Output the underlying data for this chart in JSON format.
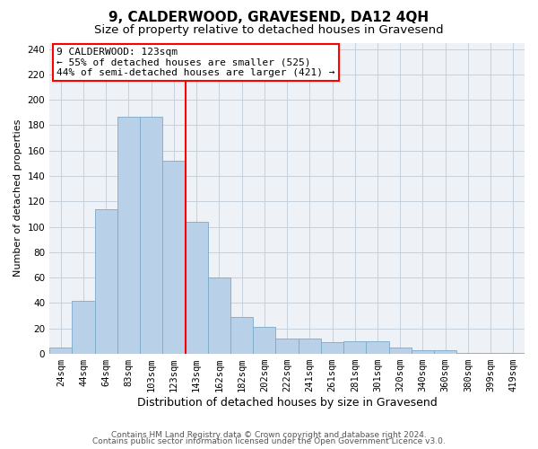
{
  "title": "9, CALDERWOOD, GRAVESEND, DA12 4QH",
  "subtitle": "Size of property relative to detached houses in Gravesend",
  "xlabel": "Distribution of detached houses by size in Gravesend",
  "ylabel": "Number of detached properties",
  "categories": [
    "24sqm",
    "44sqm",
    "64sqm",
    "83sqm",
    "103sqm",
    "123sqm",
    "143sqm",
    "162sqm",
    "182sqm",
    "202sqm",
    "222sqm",
    "241sqm",
    "261sqm",
    "281sqm",
    "301sqm",
    "320sqm",
    "340sqm",
    "360sqm",
    "380sqm",
    "399sqm",
    "419sqm"
  ],
  "values": [
    5,
    42,
    114,
    187,
    187,
    152,
    104,
    60,
    29,
    21,
    12,
    12,
    9,
    10,
    10,
    5,
    3,
    3,
    1,
    1,
    1
  ],
  "bar_color": "#b8d0e8",
  "bar_edge_color": "#7aaac8",
  "marker_index": 5,
  "annotation_lines": [
    "9 CALDERWOOD: 123sqm",
    "← 55% of detached houses are smaller (525)",
    "44% of semi-detached houses are larger (421) →"
  ],
  "annotation_box_color": "white",
  "annotation_box_edge_color": "red",
  "marker_line_color": "red",
  "ylim": [
    0,
    245
  ],
  "yticks": [
    0,
    20,
    40,
    60,
    80,
    100,
    120,
    140,
    160,
    180,
    200,
    220,
    240
  ],
  "bg_color": "#eef2f7",
  "grid_color": "#c5d0dc",
  "footer_line1": "Contains HM Land Registry data © Crown copyright and database right 2024.",
  "footer_line2": "Contains public sector information licensed under the Open Government Licence v3.0.",
  "title_fontsize": 11,
  "subtitle_fontsize": 9.5,
  "xlabel_fontsize": 9,
  "ylabel_fontsize": 8,
  "tick_fontsize": 7.5,
  "annotation_fontsize": 8,
  "footer_fontsize": 6.5
}
